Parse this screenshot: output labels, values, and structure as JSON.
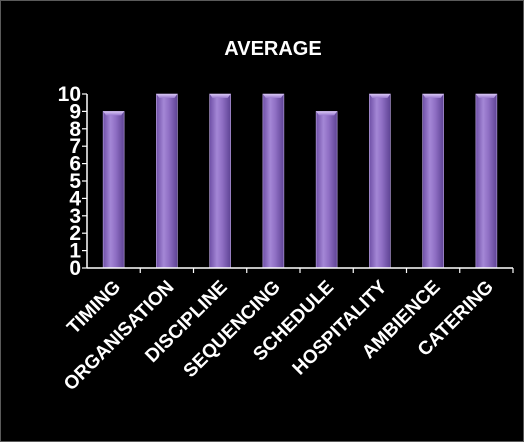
{
  "chart_data": {
    "type": "bar",
    "title": "AVERAGE",
    "categories": [
      "TIMING",
      "ORGANISATION",
      "DISCIPLINE",
      "SEQUENCING",
      "SCHEDULE",
      "HOSPITALITY",
      "AMBIENCE",
      "CATERING"
    ],
    "values": [
      9,
      10,
      10,
      10,
      9,
      10,
      10,
      10
    ],
    "xlabel": "",
    "ylabel": "",
    "ylim": [
      0,
      10
    ],
    "yticks": [
      0,
      1,
      2,
      3,
      4,
      5,
      6,
      7,
      8,
      9,
      10
    ],
    "grid": false,
    "legend": "none",
    "colors": {
      "background": "#000000",
      "bar": "#8f6fc4",
      "bar_edge": "#c4acec",
      "axis": "#ffffff",
      "text": "#ffffff"
    }
  }
}
